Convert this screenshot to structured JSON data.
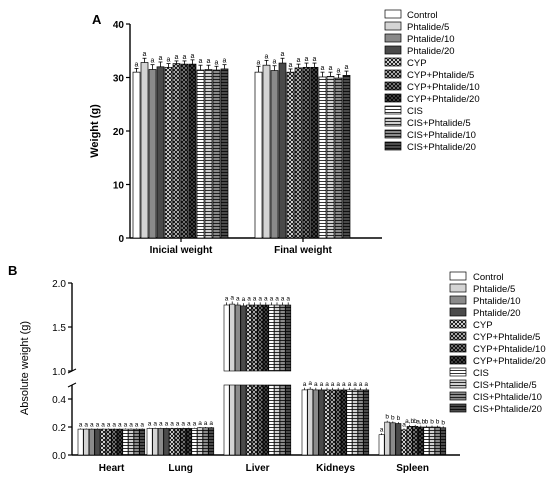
{
  "chart_data": [
    {
      "type": "bar",
      "panel_label": "A",
      "title": "",
      "xlabel": "",
      "ylabel": "Weight (g)",
      "ylim": [
        0,
        40
      ],
      "yticks": [
        "0",
        "10",
        "20",
        "30",
        "40"
      ],
      "categories": [
        "Inicial weight",
        "Final weight"
      ],
      "legend_position": "top-right",
      "series": [
        {
          "name": "Control",
          "values": [
            31.0,
            31.0
          ],
          "errors": [
            0.7,
            1.1
          ],
          "labels": [
            "a",
            "a"
          ]
        },
        {
          "name": "Phtalide/5",
          "values": [
            32.8,
            32.3
          ],
          "errors": [
            0.8,
            0.9
          ],
          "labels": [
            "a",
            "a"
          ]
        },
        {
          "name": "Phtalide/10",
          "values": [
            31.5,
            31.3
          ],
          "errors": [
            0.9,
            0.9
          ],
          "labels": [
            "a",
            "a"
          ]
        },
        {
          "name": "Phtalide/20",
          "values": [
            32.0,
            32.7
          ],
          "errors": [
            0.9,
            0.9
          ],
          "labels": [
            "a",
            "a"
          ]
        },
        {
          "name": "CYP",
          "values": [
            31.9,
            31.0
          ],
          "errors": [
            0.7,
            0.6
          ],
          "labels": [
            "a",
            "a"
          ]
        },
        {
          "name": "CYP+Phtalide/5",
          "values": [
            32.6,
            31.8
          ],
          "errors": [
            0.5,
            0.7
          ],
          "labels": [
            "a",
            "a"
          ]
        },
        {
          "name": "CYP+Phtalide/10",
          "values": [
            32.5,
            31.9
          ],
          "errors": [
            0.6,
            0.8
          ],
          "labels": [
            "a",
            "a"
          ]
        },
        {
          "name": "CYP+Phtalide/20",
          "values": [
            32.5,
            31.9
          ],
          "errors": [
            0.8,
            0.8
          ],
          "labels": [
            "a",
            "a"
          ]
        },
        {
          "name": "CIS",
          "values": [
            31.4,
            30.1
          ],
          "errors": [
            0.9,
            0.9
          ],
          "labels": [
            "a",
            "a"
          ]
        },
        {
          "name": "CIS+Phtalide/5",
          "values": [
            31.5,
            30.2
          ],
          "errors": [
            0.8,
            0.8
          ],
          "labels": [
            "a",
            "a"
          ]
        },
        {
          "name": "CIS+Phtalide/10",
          "values": [
            31.4,
            29.9
          ],
          "errors": [
            0.7,
            0.7
          ],
          "labels": [
            "a",
            "a"
          ]
        },
        {
          "name": "CIS+Phtalide/20",
          "values": [
            31.6,
            30.4
          ],
          "errors": [
            0.8,
            0.8
          ],
          "labels": [
            "a",
            "a"
          ]
        }
      ]
    },
    {
      "type": "bar",
      "panel_label": "B",
      "title": "",
      "xlabel": "",
      "ylabel": "Absolute weight (g)",
      "ylim": [
        0,
        2.0
      ],
      "axis_break": [
        0.5,
        1.0
      ],
      "yticks": [
        "0.0",
        "0.2",
        "0.4",
        "1.0",
        "1.5",
        "2.0"
      ],
      "categories": [
        "Heart",
        "Lung",
        "Liver",
        "Kidneys",
        "Spleen"
      ],
      "legend_position": "top-right",
      "series": [
        {
          "name": "Control",
          "values": [
            0.185,
            0.19,
            1.75,
            0.465,
            0.145
          ],
          "errors": [
            0.005,
            0.005,
            0.03,
            0.015,
            0.01
          ],
          "labels": [
            "a",
            "a",
            "a",
            "a",
            "a"
          ]
        },
        {
          "name": "Phtalide/5",
          "values": [
            0.185,
            0.19,
            1.76,
            0.47,
            0.235
          ],
          "errors": [
            0.005,
            0.005,
            0.03,
            0.015,
            0.01
          ],
          "labels": [
            "a",
            "a",
            "a",
            "a",
            "b"
          ]
        },
        {
          "name": "Phtalide/10",
          "values": [
            0.185,
            0.19,
            1.75,
            0.465,
            0.23
          ],
          "errors": [
            0.005,
            0.005,
            0.03,
            0.015,
            0.01
          ],
          "labels": [
            "a",
            "a",
            "a",
            "a",
            "b"
          ]
        },
        {
          "name": "Phtalide/20",
          "values": [
            0.185,
            0.19,
            1.74,
            0.465,
            0.225
          ],
          "errors": [
            0.005,
            0.005,
            0.03,
            0.015,
            0.01
          ],
          "labels": [
            "a",
            "a",
            "a",
            "a",
            "b"
          ]
        },
        {
          "name": "CYP",
          "values": [
            0.185,
            0.19,
            1.75,
            0.465,
            0.18
          ],
          "errors": [
            0.005,
            0.005,
            0.03,
            0.015,
            0.01
          ],
          "labels": [
            "a",
            "a",
            "a",
            "a",
            "a"
          ]
        },
        {
          "name": "CYP+Phtalide/5",
          "values": [
            0.185,
            0.19,
            1.75,
            0.465,
            0.205
          ],
          "errors": [
            0.005,
            0.005,
            0.03,
            0.015,
            0.01
          ],
          "labels": [
            "a",
            "a",
            "a",
            "a",
            "a,b"
          ]
        },
        {
          "name": "CYP+Phtalide/10",
          "values": [
            0.185,
            0.19,
            1.75,
            0.465,
            0.205
          ],
          "errors": [
            0.005,
            0.005,
            0.03,
            0.015,
            0.01
          ],
          "labels": [
            "a",
            "a",
            "a",
            "a",
            "b"
          ]
        },
        {
          "name": "CYP+Phtalide/20",
          "values": [
            0.185,
            0.19,
            1.75,
            0.465,
            0.2
          ],
          "errors": [
            0.005,
            0.005,
            0.03,
            0.015,
            0.01
          ],
          "labels": [
            "a",
            "a",
            "a",
            "a",
            "a,b"
          ]
        },
        {
          "name": "CIS",
          "values": [
            0.185,
            0.19,
            1.75,
            0.465,
            0.2
          ],
          "errors": [
            0.005,
            0.005,
            0.03,
            0.015,
            0.01
          ],
          "labels": [
            "a",
            "a",
            "a",
            "a",
            "b"
          ]
        },
        {
          "name": "CIS+Phtalide/5",
          "values": [
            0.185,
            0.195,
            1.75,
            0.465,
            0.2
          ],
          "errors": [
            0.005,
            0.005,
            0.03,
            0.015,
            0.01
          ],
          "labels": [
            "a",
            "a",
            "a",
            "a",
            "b"
          ]
        },
        {
          "name": "CIS+Phtalide/10",
          "values": [
            0.185,
            0.195,
            1.75,
            0.465,
            0.2
          ],
          "errors": [
            0.005,
            0.005,
            0.03,
            0.015,
            0.01
          ],
          "labels": [
            "a",
            "a",
            "a",
            "a",
            "b"
          ]
        },
        {
          "name": "CIS+Phtalide/20",
          "values": [
            0.185,
            0.195,
            1.75,
            0.465,
            0.195
          ],
          "errors": [
            0.005,
            0.005,
            0.03,
            0.015,
            0.01
          ],
          "labels": [
            "a",
            "a",
            "a",
            "a",
            "b"
          ]
        }
      ]
    }
  ]
}
